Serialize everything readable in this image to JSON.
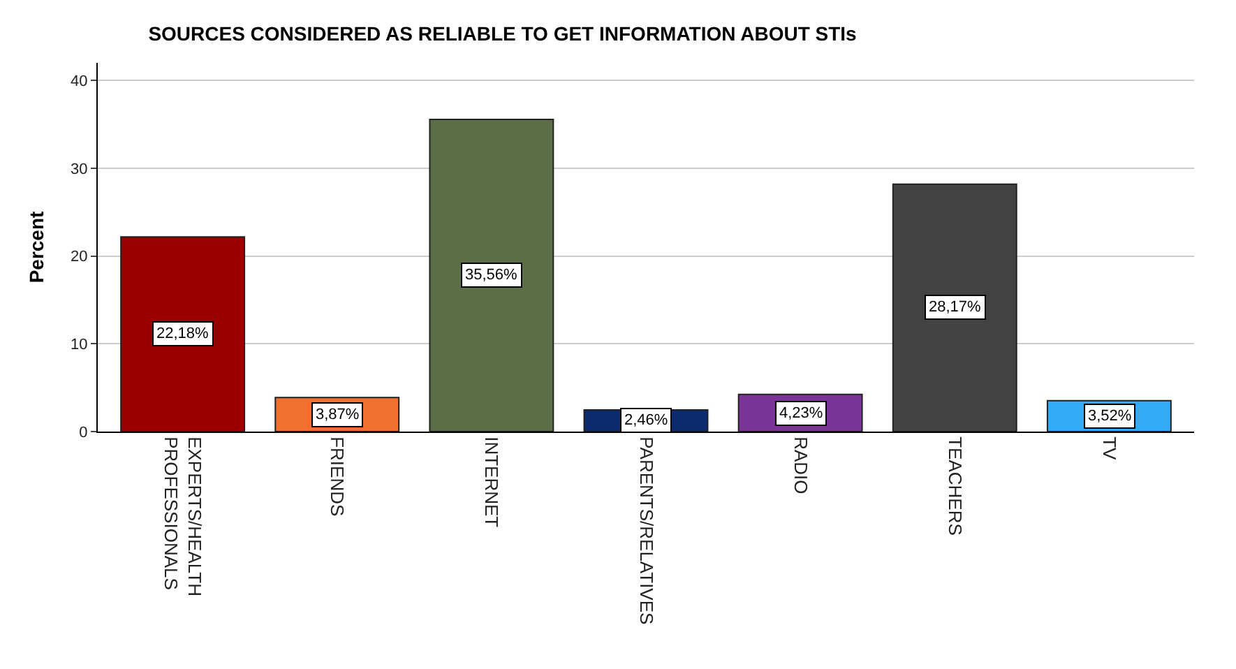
{
  "chart_data": {
    "type": "bar",
    "title": "SOURCES CONSIDERED AS RELIABLE TO GET INFORMATION ABOUT STIs",
    "ylabel": "Percent",
    "categories": [
      "EXPERTS/HEALTH PROFESSIONALS",
      "FRIENDS",
      "INTERNET",
      "PARENTS/RELATIVES",
      "RADIO",
      "TEACHERS",
      "TV"
    ],
    "values": [
      22.18,
      3.87,
      35.56,
      2.46,
      4.23,
      28.17,
      3.52
    ],
    "value_labels": [
      "22,18%",
      "3,87%",
      "35,56%",
      "2,46%",
      "4,23%",
      "28,17%",
      "3,52%"
    ],
    "colors": [
      "#990000",
      "#f07030",
      "#5b6e47",
      "#0c2a6e",
      "#7a3596",
      "#434343",
      "#33aaf5"
    ],
    "ylim": [
      0,
      42
    ],
    "yticks": [
      0,
      10,
      20,
      30,
      40
    ],
    "grid": "y",
    "legend": false
  }
}
